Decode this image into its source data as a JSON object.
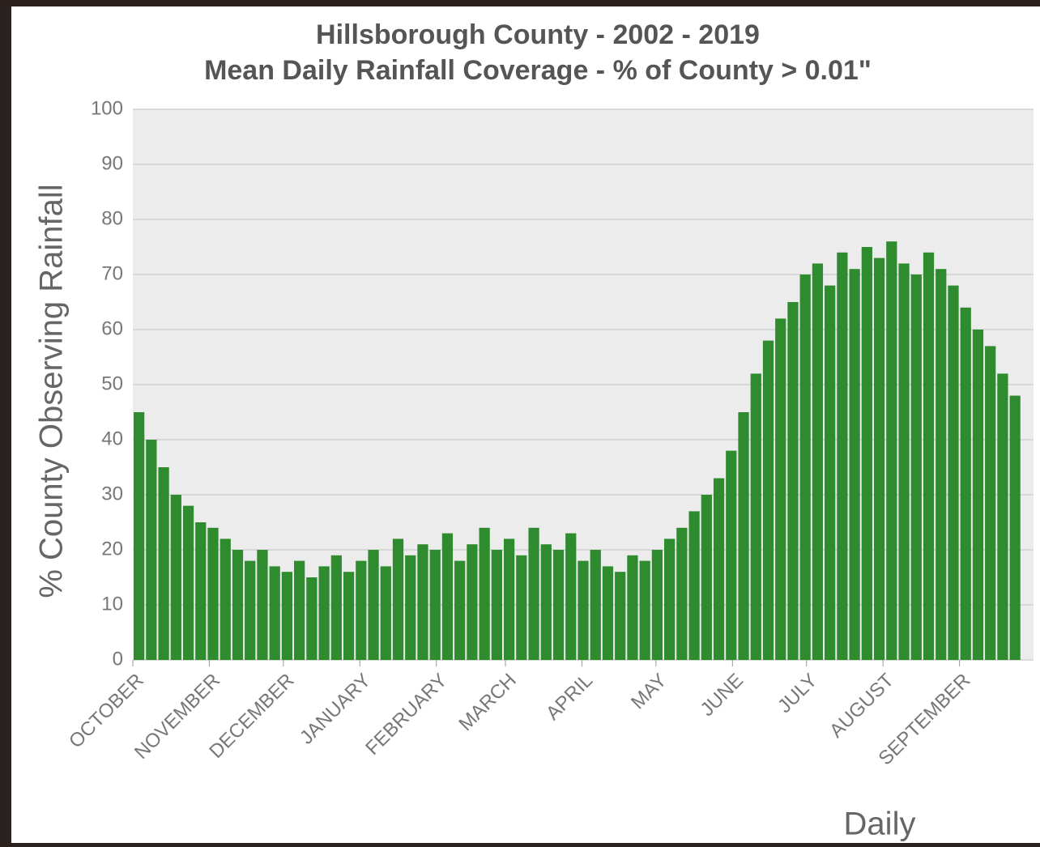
{
  "chart_data": {
    "type": "bar",
    "title": "Hillsborough County - 2002 - 2019",
    "subtitle": "Mean Daily Rainfall Coverage - % of County > 0.01\"",
    "y_label": "% County Observing Rainfall",
    "x_label": "Daily",
    "color": "#2e8b2e",
    "grid": true,
    "x": [
      0,
      5,
      10,
      15,
      20,
      25,
      30,
      35,
      40,
      45,
      50,
      55,
      60,
      65,
      70,
      75,
      80,
      85,
      90,
      95,
      100,
      105,
      110,
      115,
      120,
      125,
      130,
      135,
      140,
      145,
      150,
      155,
      160,
      165,
      170,
      175,
      180,
      185,
      190,
      195,
      200,
      205,
      210,
      215,
      220,
      225,
      230,
      235,
      240,
      245,
      250,
      255,
      260,
      265,
      270,
      275,
      280,
      285,
      290,
      295,
      300,
      305,
      310,
      315,
      320,
      325,
      330,
      335,
      340,
      345,
      350,
      355
    ],
    "values": [
      45,
      40,
      35,
      30,
      28,
      25,
      24,
      22,
      20,
      18,
      20,
      17,
      16,
      18,
      15,
      17,
      19,
      16,
      18,
      20,
      17,
      22,
      19,
      21,
      20,
      23,
      18,
      21,
      24,
      20,
      22,
      19,
      24,
      21,
      20,
      23,
      18,
      20,
      17,
      16,
      19,
      18,
      20,
      22,
      24,
      27,
      30,
      33,
      38,
      45,
      52,
      58,
      62,
      65,
      70,
      72,
      68,
      74,
      71,
      75,
      73,
      76,
      72,
      70,
      74,
      71,
      68,
      64,
      60,
      57,
      52,
      48
    ],
    "xlim": [
      0,
      365
    ],
    "xticks": [
      {
        "value": 0,
        "label": "OCTOBER"
      },
      {
        "value": 31,
        "label": "NOVEMBER"
      },
      {
        "value": 61,
        "label": "DECEMBER"
      },
      {
        "value": 92,
        "label": "JANUARY"
      },
      {
        "value": 123,
        "label": "FEBRUARY"
      },
      {
        "value": 151,
        "label": "MARCH"
      },
      {
        "value": 182,
        "label": "APRIL"
      },
      {
        "value": 212,
        "label": "MAY"
      },
      {
        "value": 243,
        "label": "JUNE"
      },
      {
        "value": 273,
        "label": "JULY"
      },
      {
        "value": 304,
        "label": "AUGUST"
      },
      {
        "value": 335,
        "label": "SEPTEMBER"
      }
    ],
    "ylim": [
      0,
      100
    ],
    "yticks": [
      0,
      10,
      20,
      30,
      40,
      50,
      60,
      70,
      80,
      90,
      100
    ]
  }
}
